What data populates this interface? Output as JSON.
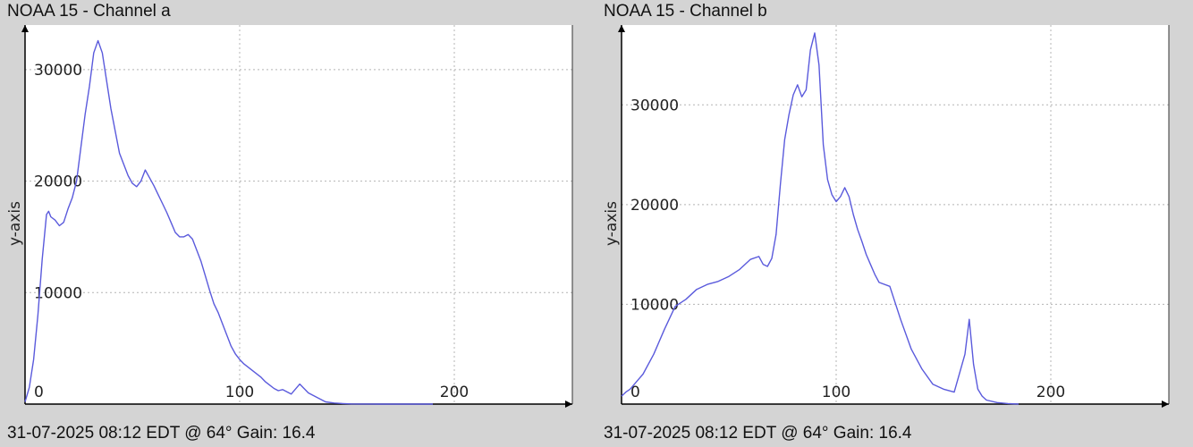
{
  "chart_data": [
    {
      "type": "line",
      "title": "NOAA 15 - Channel a",
      "footer": "31-07-2025 08:12 EDT @ 64° Gain: 16.4",
      "ylabel": "y-axis",
      "xlabel": "",
      "xlim": [
        0,
        255
      ],
      "ylim": [
        0,
        34000
      ],
      "xticks": [
        0,
        100,
        200
      ],
      "yticks": [
        10000,
        20000,
        30000
      ],
      "grid": true,
      "line_color": "#5a5adc",
      "series": [
        {
          "x": [
            0,
            2,
            4,
            6,
            8,
            10,
            11,
            12,
            14,
            16,
            18,
            20,
            22,
            24,
            26,
            28,
            30,
            32,
            34,
            36,
            38,
            40,
            42,
            44,
            46,
            48,
            50,
            52,
            54,
            56,
            58,
            60,
            62,
            64,
            66,
            68,
            70,
            72,
            74,
            76,
            78,
            80,
            82,
            84,
            86,
            88,
            90,
            92,
            94,
            96,
            98,
            100,
            102,
            104,
            106,
            108,
            110,
            112,
            114,
            116,
            118,
            120,
            124,
            128,
            132,
            136,
            140,
            144,
            148,
            152,
            156,
            160,
            164,
            168,
            172,
            176,
            180,
            185,
            190
          ],
          "y": [
            200,
            1500,
            4000,
            8000,
            13000,
            17000,
            17300,
            16800,
            16500,
            16000,
            16300,
            17500,
            18500,
            20000,
            23000,
            26000,
            28500,
            31500,
            32600,
            31500,
            29000,
            26500,
            24500,
            22500,
            21500,
            20500,
            19800,
            19500,
            20000,
            21000,
            20300,
            19600,
            18800,
            18000,
            17200,
            16300,
            15400,
            15000,
            15000,
            15200,
            14800,
            13800,
            12800,
            11500,
            10200,
            9000,
            8200,
            7200,
            6200,
            5200,
            4500,
            4000,
            3600,
            3300,
            3000,
            2700,
            2400,
            2000,
            1700,
            1400,
            1200,
            1300,
            900,
            1800,
            1000,
            600,
            200,
            100,
            50,
            20,
            10,
            5,
            0,
            0,
            0,
            0,
            0,
            0,
            0
          ]
        }
      ]
    },
    {
      "type": "line",
      "title": "NOAA 15 - Channel b",
      "footer": "31-07-2025 08:12 EDT @ 64° Gain: 16.4",
      "ylabel": "y-axis",
      "xlabel": "",
      "xlim": [
        0,
        255
      ],
      "ylim": [
        0,
        38000
      ],
      "xticks": [
        0,
        100,
        200
      ],
      "yticks": [
        10000,
        20000,
        30000
      ],
      "grid": true,
      "line_color": "#5a5adc",
      "series": [
        {
          "x": [
            0,
            2,
            4,
            6,
            8,
            10,
            15,
            20,
            25,
            30,
            35,
            40,
            45,
            50,
            55,
            60,
            64,
            66,
            68,
            70,
            72,
            74,
            76,
            78,
            80,
            82,
            84,
            86,
            88,
            90,
            92,
            94,
            96,
            98,
            100,
            102,
            104,
            106,
            108,
            110,
            112,
            114,
            116,
            118,
            120,
            125,
            130,
            135,
            140,
            145,
            150,
            155,
            160,
            162,
            164,
            166,
            168,
            170,
            175,
            180,
            185
          ],
          "y": [
            800,
            1200,
            1500,
            2000,
            2500,
            3000,
            5000,
            7500,
            9800,
            10500,
            11500,
            12000,
            12300,
            12800,
            13500,
            14500,
            14800,
            14000,
            13800,
            14600,
            17000,
            22000,
            26500,
            29000,
            31000,
            32000,
            30800,
            31500,
            35500,
            37200,
            34000,
            26000,
            22500,
            21000,
            20300,
            20800,
            21700,
            20800,
            19000,
            17500,
            16300,
            15000,
            14000,
            13000,
            12200,
            11800,
            8500,
            5500,
            3500,
            2000,
            1500,
            1200,
            5000,
            8500,
            4000,
            1500,
            800,
            400,
            150,
            50,
            0
          ]
        }
      ]
    }
  ]
}
